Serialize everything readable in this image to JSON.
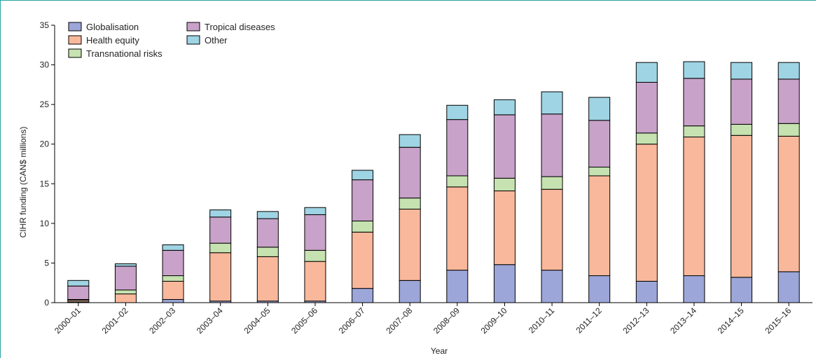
{
  "colors": {
    "Globalisation": "#9ca6d8",
    "Health equity": "#f9b89b",
    "Transnational risks": "#c5e2b0",
    "Tropical diseases": "#c8a2c8",
    "Other": "#9fd4e4",
    "frame": "#2aa4a6"
  },
  "chart_data": {
    "type": "bar",
    "stacked": true,
    "xlabel": "Year",
    "ylabel": "CIHR funding (CAN$ millions)",
    "ylim": [
      0,
      35
    ],
    "yticks": [
      0,
      5,
      10,
      15,
      20,
      25,
      30,
      35
    ],
    "grid": false,
    "legend_position": "top-left",
    "categories": [
      "2000–01",
      "2001–02",
      "2002–03",
      "2003–04",
      "2004–05",
      "2005–06",
      "2006–07",
      "2007–08",
      "2008–09",
      "2009–10",
      "2010–11",
      "2011–12",
      "2012–13",
      "2013–14",
      "2014–15",
      "2015–16"
    ],
    "series": [
      {
        "name": "Globalisation",
        "values": [
          0.1,
          0,
          0.4,
          0.2,
          0.2,
          0.2,
          1.8,
          2.8,
          4.1,
          4.8,
          4.1,
          3.4,
          2.7,
          3.4,
          3.2,
          3.9
        ]
      },
      {
        "name": "Health equity",
        "values": [
          0.2,
          1.1,
          2.3,
          6.1,
          5.6,
          5.0,
          7.1,
          9.0,
          10.5,
          9.3,
          10.2,
          12.6,
          17.3,
          17.5,
          17.9,
          17.1
        ]
      },
      {
        "name": "Transnational risks",
        "values": [
          0.1,
          0.5,
          0.7,
          1.2,
          1.2,
          1.4,
          1.4,
          1.4,
          1.4,
          1.6,
          1.6,
          1.1,
          1.4,
          1.4,
          1.4,
          1.6
        ]
      },
      {
        "name": "Tropical diseases",
        "values": [
          1.7,
          3.0,
          3.2,
          3.3,
          3.6,
          4.5,
          5.2,
          6.4,
          7.1,
          8.0,
          7.9,
          5.9,
          6.4,
          6.0,
          5.7,
          5.6
        ]
      },
      {
        "name": "Other",
        "values": [
          0.7,
          0.3,
          0.7,
          0.9,
          0.9,
          0.9,
          1.2,
          1.6,
          1.8,
          1.9,
          2.8,
          2.9,
          2.5,
          2.1,
          2.1,
          2.1
        ]
      }
    ],
    "legend_order": [
      "Globalisation",
      "Health equity",
      "Transnational risks",
      "Tropical diseases",
      "Other"
    ]
  }
}
